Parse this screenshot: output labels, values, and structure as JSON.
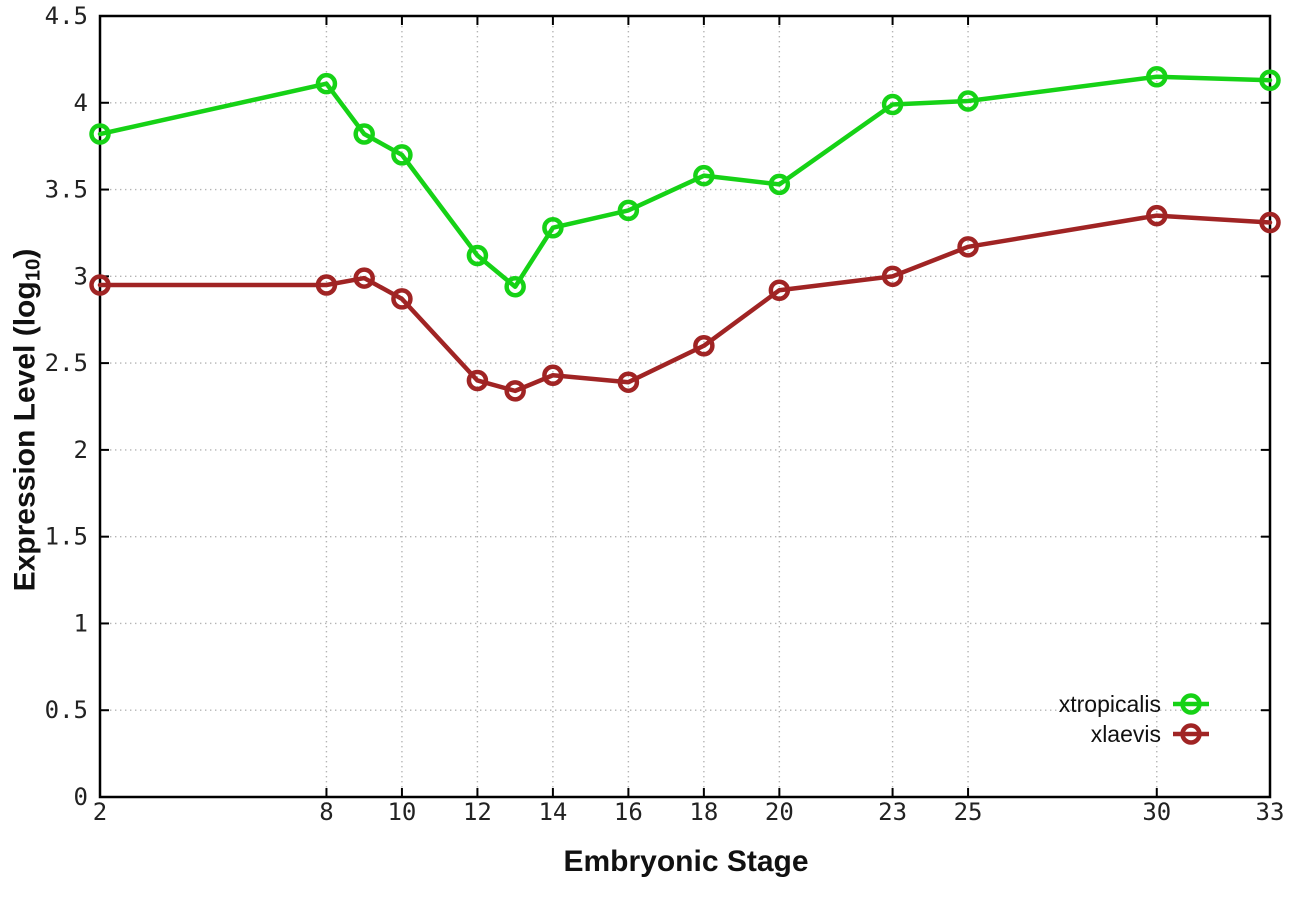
{
  "chart_data": {
    "type": "line",
    "title": "",
    "xlabel": "Embryonic Stage",
    "ylabel": "Expression Level (log10)",
    "ylabel_parts": {
      "main": "Expression Level (log",
      "sub": "10",
      "close": ")"
    },
    "xlim": [
      2,
      33
    ],
    "ylim": [
      0,
      4.5
    ],
    "grid": true,
    "legend_position": "bottom-right",
    "xticks": [
      2,
      8,
      10,
      12,
      14,
      16,
      18,
      20,
      23,
      25,
      30,
      33
    ],
    "yticks": [
      "0",
      "0.5",
      "1",
      "1.5",
      "2",
      "2.5",
      "3",
      "3.5",
      "4",
      "4.5"
    ],
    "x": [
      2,
      8,
      9,
      10,
      12,
      13,
      14,
      16,
      18,
      20,
      23,
      25,
      30,
      33
    ],
    "series": [
      {
        "name": "xtropicalis",
        "color": "#16d216",
        "values": [
          3.82,
          4.11,
          3.82,
          3.7,
          3.12,
          2.94,
          3.28,
          3.38,
          3.58,
          3.53,
          3.99,
          4.01,
          4.15,
          4.13
        ]
      },
      {
        "name": "xlaevis",
        "color": "#a02424",
        "values": [
          2.95,
          2.95,
          2.99,
          2.87,
          2.4,
          2.34,
          2.43,
          2.39,
          2.6,
          2.92,
          3.0,
          3.17,
          3.35,
          3.31
        ]
      }
    ],
    "style": {
      "frame_color": "#000000",
      "grid_color": "#b4b4b4",
      "tick_label_color": "#222222",
      "marker_radius": 8.5,
      "line_width": 4.5
    }
  }
}
